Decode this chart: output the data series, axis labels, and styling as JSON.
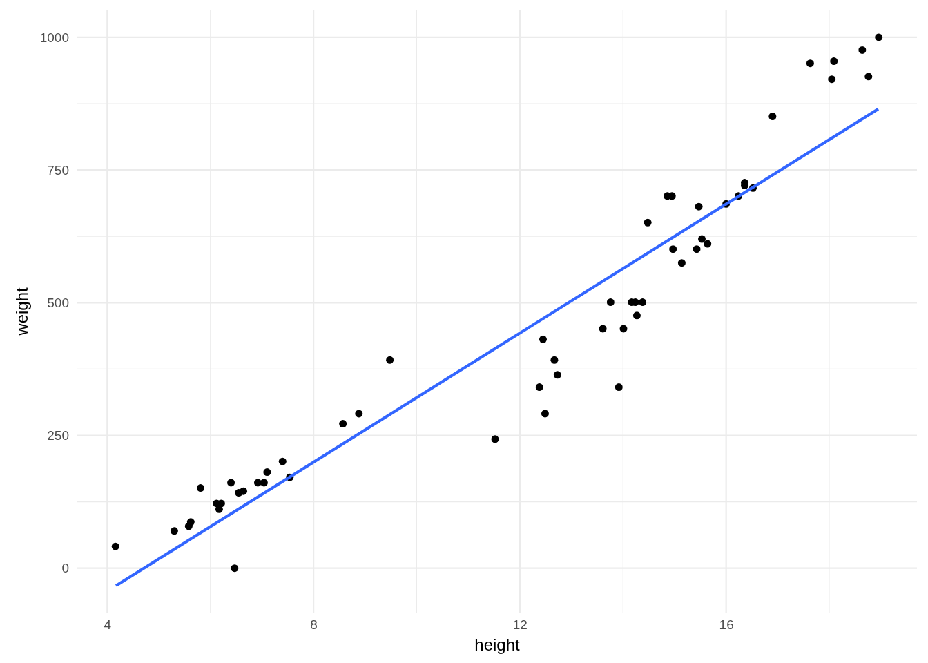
{
  "chart_data": {
    "type": "scatter",
    "xlabel": "height",
    "ylabel": "weight",
    "xlim": [
      3.42,
      19.7
    ],
    "ylim": [
      -85,
      1052
    ],
    "xticks": [
      4,
      {
        "value": 6,
        "label": null
      },
      8,
      {
        "value": 10,
        "label": null
      },
      12,
      {
        "value": 14,
        "label": null
      },
      16,
      {
        "value": 18,
        "label": null
      }
    ],
    "yticks": [
      0,
      {
        "value": 125,
        "label": null
      },
      250,
      {
        "value": 375,
        "label": null
      },
      500,
      {
        "value": 625,
        "label": null
      },
      750,
      {
        "value": 875,
        "label": null
      },
      1000
    ],
    "grid": true,
    "series": [
      {
        "color": "#000000",
        "marker": "circle",
        "x": [
          4.16,
          5.3,
          5.58,
          5.62,
          5.81,
          6.12,
          6.17,
          6.21,
          6.4,
          6.47,
          6.55,
          6.64,
          6.92,
          7.04,
          7.1,
          7.4,
          7.54,
          8.57,
          8.88,
          9.48,
          11.52,
          12.38,
          12.45,
          12.49,
          12.67,
          12.73,
          13.61,
          13.76,
          13.92,
          14.01,
          14.17,
          14.24,
          14.27,
          14.38,
          14.48,
          14.86,
          14.95,
          14.97,
          15.14,
          15.43,
          15.47,
          15.53,
          15.64,
          16.0,
          16.24,
          16.36,
          16.36,
          16.52,
          16.9,
          17.63,
          18.05,
          18.09,
          18.64,
          18.76,
          18.96
        ],
        "values": [
          41,
          70,
          79,
          87,
          151,
          122,
          111,
          122,
          161,
          0,
          142,
          145,
          161,
          161,
          181,
          201,
          171,
          272,
          291,
          392,
          243,
          341,
          431,
          291,
          392,
          364,
          451,
          501,
          341,
          451,
          501,
          501,
          476,
          501,
          651,
          701,
          701,
          601,
          575,
          601,
          681,
          620,
          611,
          686,
          701,
          726,
          721,
          716,
          851,
          951,
          921,
          955,
          976,
          926,
          1000
        ]
      },
      {
        "type": "line",
        "color": "#3366ff",
        "line_style": "solid",
        "x": [
          4.17,
          18.95
        ],
        "values": [
          -33,
          865
        ]
      }
    ]
  }
}
